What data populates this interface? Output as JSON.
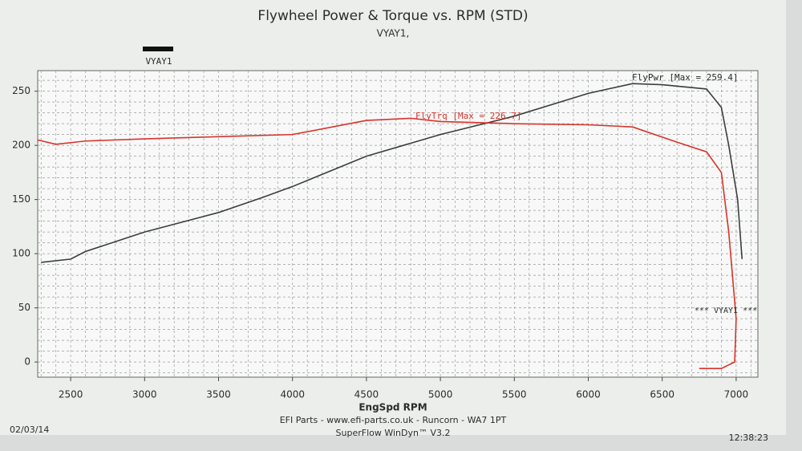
{
  "chart_data": {
    "type": "line",
    "title": "Flywheel Power & Torque vs. RPM (STD)",
    "subtitle": "VYAY1,",
    "legend_label": "VYAY1",
    "run_label": "*** VYAY1 ***",
    "xlabel": "EngSpd RPM",
    "xlim": [
      2277,
      7147
    ],
    "ylim": [
      -14,
      269
    ],
    "xticks": [
      2500,
      3000,
      3500,
      4000,
      4500,
      5000,
      5500,
      6000,
      6500,
      7000
    ],
    "yticks": [
      0,
      50,
      100,
      150,
      200,
      250
    ],
    "grid": true,
    "series": [
      {
        "label": "FlyPwr [Max = 259.4]",
        "color": "#3a3f3c",
        "x": [
          2300,
          2500,
          2600,
          3000,
          3500,
          3800,
          4000,
          4500,
          5000,
          5500,
          6000,
          6300,
          6500,
          6800,
          6900,
          6950,
          7010,
          7040
        ],
        "values": [
          92,
          95,
          102,
          120,
          138,
          152,
          162,
          190,
          210,
          227,
          248,
          257,
          256,
          252,
          235,
          200,
          150,
          95
        ]
      },
      {
        "label": "FlyTrq [Max = 226.7]",
        "color": "#d8332c",
        "x": [
          2277,
          2400,
          2600,
          3000,
          3500,
          4000,
          4500,
          4800,
          5000,
          5500,
          6000,
          6300,
          6600,
          6800,
          6900,
          6950,
          7000,
          6990,
          6900,
          6750
        ],
        "values": [
          205,
          201,
          204,
          206,
          208,
          210,
          223,
          225,
          222,
          220,
          219,
          217,
          203,
          194,
          175,
          120,
          40,
          0,
          -6,
          -6
        ]
      }
    ],
    "footer": {
      "date": "02/03/14",
      "company": "EFI Parts - www.efi-parts.co.uk - Runcorn - WA7 1PT",
      "software": "SuperFlow WinDyn™ V3.2",
      "time": "12:38:23"
    }
  }
}
